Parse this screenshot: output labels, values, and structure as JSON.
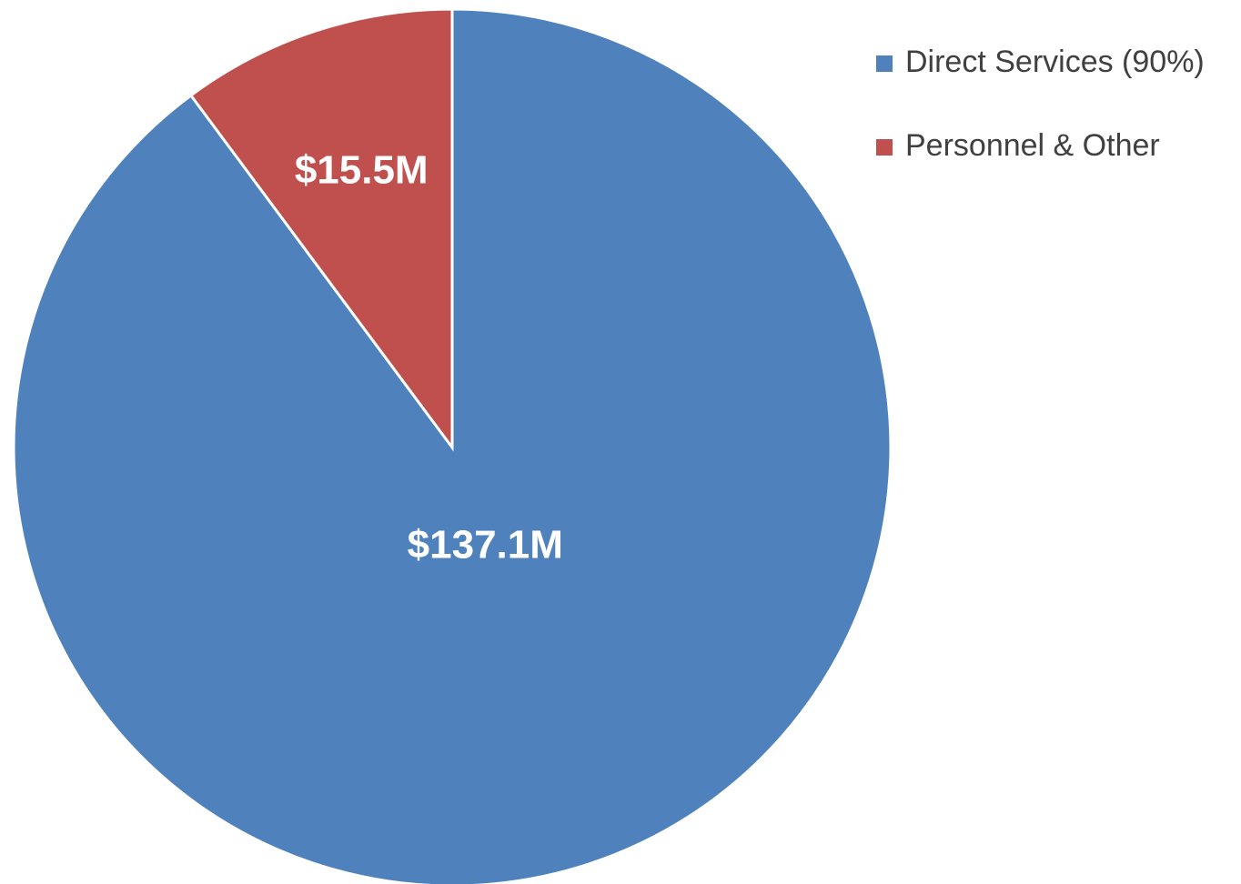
{
  "chart_data": {
    "type": "pie",
    "series": [
      {
        "name": "Direct Services (90%)",
        "color": "#4f81bd",
        "values": [
          137.1
        ],
        "value_labels": [
          "$137.1M"
        ]
      },
      {
        "name": "Personnel & Other",
        "color": "#c0504d",
        "values": [
          15.5
        ],
        "value_labels": [
          "$15.5M"
        ]
      }
    ],
    "legend": "right"
  }
}
